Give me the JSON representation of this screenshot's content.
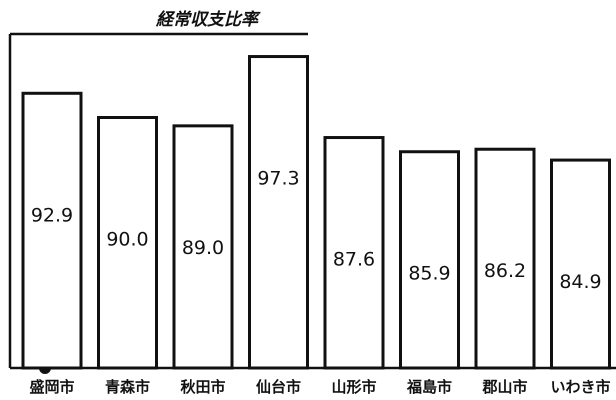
{
  "chart_data": {
    "type": "bar",
    "title": "経常収支比率",
    "categories": [
      "盛岡市",
      "青森市",
      "秋田市",
      "仙台市",
      "山形市",
      "福島市",
      "郡山市",
      "いわき市"
    ],
    "values": [
      92.9,
      90.0,
      89.0,
      97.3,
      87.6,
      85.9,
      86.2,
      84.9
    ],
    "value_labels": [
      "92.9",
      "90.0",
      "89.0",
      "97.3",
      "87.6",
      "85.9",
      "86.2",
      "84.9"
    ],
    "xlabel": "",
    "ylabel": "",
    "ylim": [
      60,
      100
    ],
    "grid": false,
    "legend": "none",
    "colors": {
      "bar_fill": "#ffffff",
      "bar_stroke": "#111111",
      "text": "#111111"
    }
  }
}
